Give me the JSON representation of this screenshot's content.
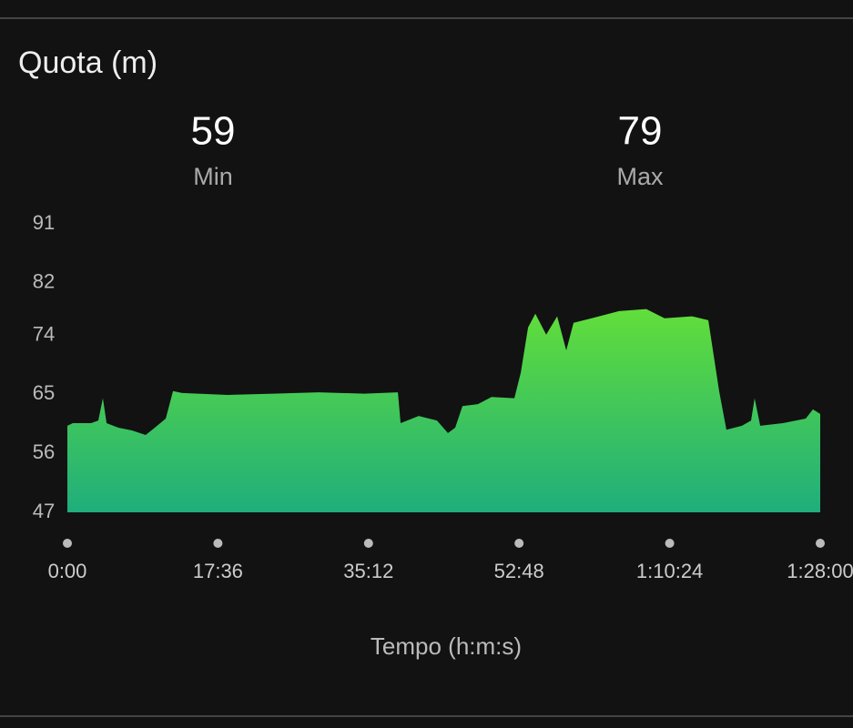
{
  "chart_data": {
    "type": "area",
    "title": "Quota (m)",
    "stats": [
      {
        "value": 59,
        "label": "Min"
      },
      {
        "value": 79,
        "label": "Max"
      }
    ],
    "xlabel": "Tempo (h:m:s)",
    "x": [
      0,
      38,
      166,
      217,
      249,
      275,
      358,
      453,
      549,
      613,
      690,
      741,
      805,
      1124,
      1443,
      1762,
      2081,
      2318,
      2337,
      2464,
      2592,
      2669,
      2720,
      2771,
      2879,
      2975,
      3135,
      3180,
      3231,
      3282,
      3358,
      3435,
      3499,
      3550,
      3677,
      3869,
      4060,
      4188,
      4380,
      4495,
      4571,
      4622,
      4731,
      4795,
      4820,
      4859,
      5018,
      5178,
      5229,
      5280
    ],
    "values": [
      60.2,
      60.6,
      60.6,
      61,
      64.4,
      60.6,
      59.9,
      59.5,
      58.8,
      59.9,
      61.3,
      65.5,
      65.2,
      64.9,
      65.1,
      65.3,
      65.1,
      65.3,
      60.6,
      61.7,
      61,
      59.1,
      59.9,
      63.2,
      63.5,
      64.6,
      64.4,
      68.3,
      75.2,
      77.3,
      74.1,
      76.9,
      71.7,
      75.9,
      76.6,
      77.7,
      78,
      76.6,
      76.9,
      76.3,
      65.5,
      59.6,
      60.2,
      61,
      64.4,
      60.2,
      60.6,
      61.3,
      62.7,
      62
    ],
    "gradient": [
      "#62de3a",
      "#1fae7c"
    ],
    "xlim": [
      0,
      5280
    ],
    "xticks": [
      {
        "value": 0,
        "label": "0:00"
      },
      {
        "value": 1056,
        "label": "17:36"
      },
      {
        "value": 2112,
        "label": "35:12"
      },
      {
        "value": 3168,
        "label": "52:48"
      },
      {
        "value": 4224,
        "label": "1:10:24"
      },
      {
        "value": 5280,
        "label": "1:28:00"
      }
    ],
    "ylim": [
      47,
      91
    ],
    "yticks": [
      91,
      82,
      74,
      65,
      56,
      47
    ],
    "grid": false
  }
}
